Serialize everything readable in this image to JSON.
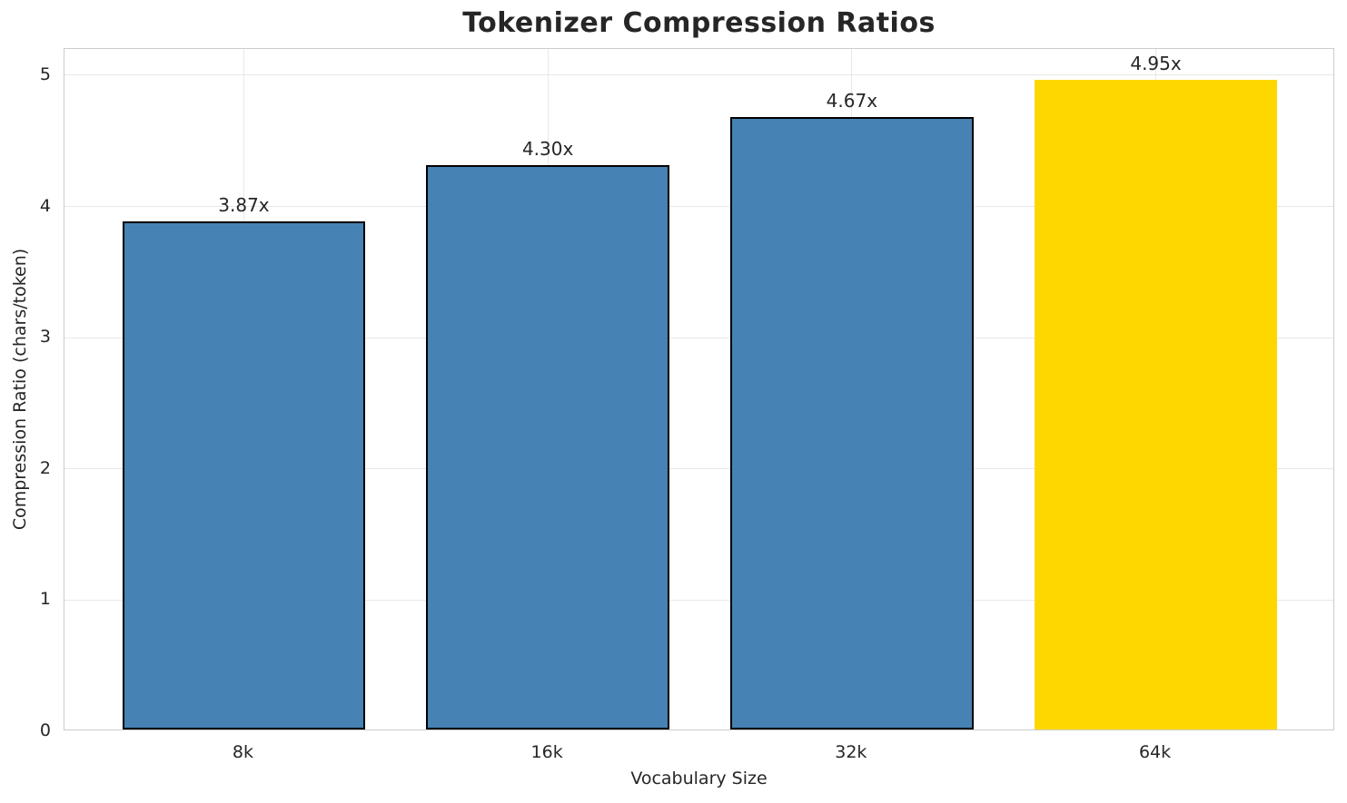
{
  "chart_data": {
    "type": "bar",
    "title": "Tokenizer Compression Ratios",
    "xlabel": "Vocabulary Size",
    "ylabel": "Compression Ratio (chars/token)",
    "categories": [
      "8k",
      "16k",
      "32k",
      "64k"
    ],
    "values": [
      3.87,
      4.3,
      4.67,
      4.95
    ],
    "bar_labels": [
      "3.87x",
      "4.30x",
      "4.67x",
      "4.95x"
    ],
    "bar_colors": [
      "#4682B4",
      "#4682B4",
      "#4682B4",
      "#FFD700"
    ],
    "bar_edge_colors": [
      "#000000",
      "#000000",
      "#000000",
      "none"
    ],
    "highlight_index": 3,
    "yticks": [
      0,
      1,
      2,
      3,
      4,
      5
    ],
    "ylim": [
      0,
      5.2
    ],
    "xlim": [
      -0.59,
      3.59
    ],
    "bar_width": 0.8,
    "grid": true,
    "legend": null,
    "colors": {
      "bar_default": "#4682B4",
      "bar_highlight": "#FFD700",
      "bar_edge": "#000000",
      "grid": "#E8E8E8",
      "axes_edge": "#CCCCCC",
      "text": "#262626"
    }
  }
}
